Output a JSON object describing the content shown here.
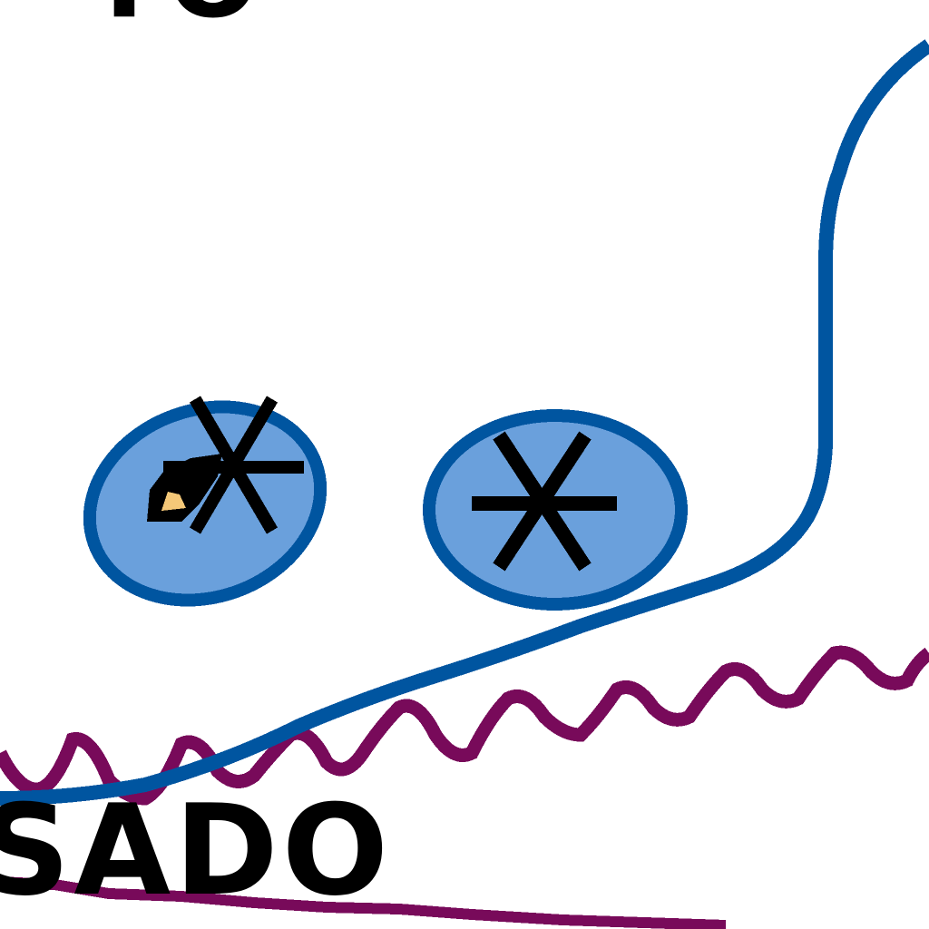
{
  "texts": {
    "top_fragment": "TO",
    "bottom_fragment": "SADO"
  },
  "colors": {
    "background": "#ffffff",
    "outline_blue": "#0055a0",
    "fill_light_blue": "#6aa0dc",
    "wavy_purple": "#780a5a",
    "ink_black": "#000000",
    "cursor_fill": "#f5c878"
  },
  "icons": {
    "left_oval": "asterisk-oval-icon",
    "right_oval": "asterisk-oval-icon",
    "pointer": "hand-pointer-icon"
  }
}
